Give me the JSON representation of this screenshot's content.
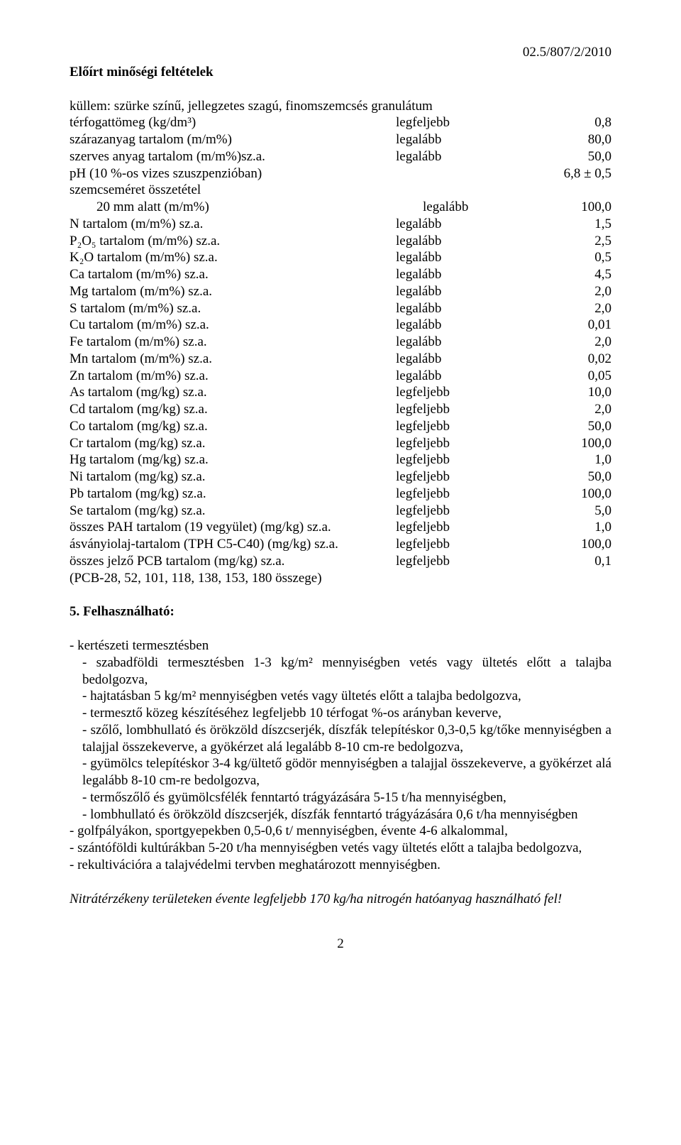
{
  "header": {
    "docnum": "02.5/807/2/2010"
  },
  "heading1": "Előírt minőségi feltételek",
  "intro": "küllem: szürke színű, jellegzetes szagú, finomszemcsés granulátum",
  "specs": [
    {
      "label": "térfogattömeg (kg/dm³)",
      "qual": "legfeljebb",
      "val": "0,8",
      "indent": false
    },
    {
      "label": "szárazanyag tartalom (m/m%)",
      "qual": "legalább",
      "val": "80,0",
      "indent": false
    },
    {
      "label": "szerves anyag tartalom (m/m%)sz.a.",
      "qual": "legalább",
      "val": "50,0",
      "indent": false
    },
    {
      "label": "pH (10 %-os vizes szuszpenzióban)",
      "qual": "",
      "val": "6,8 ± 0,5",
      "indent": false
    },
    {
      "label": "szemcseméret összetétel",
      "qual": "",
      "val": "",
      "indent": false
    },
    {
      "label": "20 mm alatt (m/m%)",
      "qual": "legalább",
      "val": "100,0",
      "indent": true
    },
    {
      "label": "N tartalom (m/m%) sz.a.",
      "qual": "legalább",
      "val": "1,5",
      "indent": false
    },
    {
      "label": "P₂O₅ tartalom (m/m%) sz.a.",
      "qual": "legalább",
      "val": "2,5",
      "indent": false
    },
    {
      "label": "K₂O tartalom (m/m%) sz.a.",
      "qual": "legalább",
      "val": "0,5",
      "indent": false
    },
    {
      "label": "Ca tartalom (m/m%) sz.a.",
      "qual": "legalább",
      "val": "4,5",
      "indent": false
    },
    {
      "label": "Mg tartalom (m/m%) sz.a.",
      "qual": "legalább",
      "val": "2,0",
      "indent": false
    },
    {
      "label": "S tartalom (m/m%) sz.a.",
      "qual": "legalább",
      "val": "2,0",
      "indent": false
    },
    {
      "label": "Cu tartalom (m/m%) sz.a.",
      "qual": "legalább",
      "val": "0,01",
      "indent": false
    },
    {
      "label": "Fe tartalom (m/m%) sz.a.",
      "qual": "legalább",
      "val": "2,0",
      "indent": false
    },
    {
      "label": "Mn tartalom (m/m%) sz.a.",
      "qual": "legalább",
      "val": "0,02",
      "indent": false
    },
    {
      "label": "Zn tartalom (m/m%) sz.a.",
      "qual": "legalább",
      "val": "0,05",
      "indent": false
    },
    {
      "label": "As tartalom (mg/kg) sz.a.",
      "qual": "legfeljebb",
      "val": "10,0",
      "indent": false
    },
    {
      "label": "Cd tartalom (mg/kg) sz.a.",
      "qual": "legfeljebb",
      "val": "2,0",
      "indent": false
    },
    {
      "label": "Co tartalom (mg/kg) sz.a.",
      "qual": "legfeljebb",
      "val": "50,0",
      "indent": false
    },
    {
      "label": "Cr tartalom (mg/kg) sz.a.",
      "qual": "legfeljebb",
      "val": "100,0",
      "indent": false
    },
    {
      "label": "Hg tartalom (mg/kg) sz.a.",
      "qual": "legfeljebb",
      "val": "1,0",
      "indent": false
    },
    {
      "label": "Ni tartalom (mg/kg) sz.a.",
      "qual": "legfeljebb",
      "val": "50,0",
      "indent": false
    },
    {
      "label": "Pb tartalom (mg/kg) sz.a.",
      "qual": "legfeljebb",
      "val": "100,0",
      "indent": false
    },
    {
      "label": "Se tartalom (mg/kg) sz.a.",
      "qual": "legfeljebb",
      "val": "5,0",
      "indent": false
    },
    {
      "label": "összes PAH tartalom (19 vegyület) (mg/kg) sz.a.",
      "qual": "legfeljebb",
      "val": "1,0",
      "indent": false
    },
    {
      "label": "ásványiolaj-tartalom (TPH C5-C40) (mg/kg) sz.a.",
      "qual": "legfeljebb",
      "val": "100,0",
      "indent": false
    },
    {
      "label": "összes jelző PCB tartalom (mg/kg) sz.a.",
      "qual": "legfeljebb",
      "val": "0,1",
      "indent": false
    },
    {
      "label": "(PCB-28, 52, 101, 118, 138, 153, 180 összege)",
      "qual": "",
      "val": "",
      "indent": false
    }
  ],
  "section5_heading": "5. Felhasználható:",
  "usage": [
    {
      "lvl": 1,
      "text": "- kertészeti termesztésben"
    },
    {
      "lvl": 2,
      "text": "- szabadföldi termesztésben 1-3 kg/m² mennyiségben vetés vagy ültetés előtt a talajba bedolgozva,"
    },
    {
      "lvl": 2,
      "text": "- hajtatásban 5 kg/m² mennyiségben vetés vagy ültetés előtt a talajba bedolgozva,"
    },
    {
      "lvl": 2,
      "text": "- termesztő közeg készítéséhez legfeljebb 10 térfogat %-os arányban keverve,"
    },
    {
      "lvl": 2,
      "text": "- szőlő, lombhullató és örökzöld díszcserjék, díszfák telepítéskor 0,3-0,5 kg/tőke mennyiségben a talajjal összekeverve, a gyökérzet alá legalább 8-10 cm-re bedolgozva,"
    },
    {
      "lvl": 2,
      "text": "- gyümölcs telepítéskor 3-4 kg/ültető gödör mennyiségben a talajjal összekeverve, a gyökérzet alá legalább 8-10 cm-re bedolgozva,"
    },
    {
      "lvl": 2,
      "text": "- termőszőlő és gyümölcsfélék fenntartó trágyázására 5-15 t/ha mennyiségben,"
    },
    {
      "lvl": 2,
      "text": "- lombhullató és örökzöld díszcserjék, díszfák fenntartó trágyázására 0,6 t/ha mennyiségben"
    },
    {
      "lvl": 1,
      "text": "- golfpályákon, sportgyepekben 0,5-0,6 t/ mennyiségben, évente 4-6 alkalommal,"
    },
    {
      "lvl": 1,
      "text": "- szántóföldi kultúrákban 5-20 t/ha mennyiségben vetés vagy ültetés előtt a talajba bedolgozva,"
    },
    {
      "lvl": 1,
      "text": "- rekultivációra a talajvédelmi tervben meghatározott mennyiségben."
    }
  ],
  "footnote": "Nitrátérzékeny területeken évente legfeljebb 170 kg/ha nitrogén hatóanyag használható fel!",
  "page_number": "2"
}
